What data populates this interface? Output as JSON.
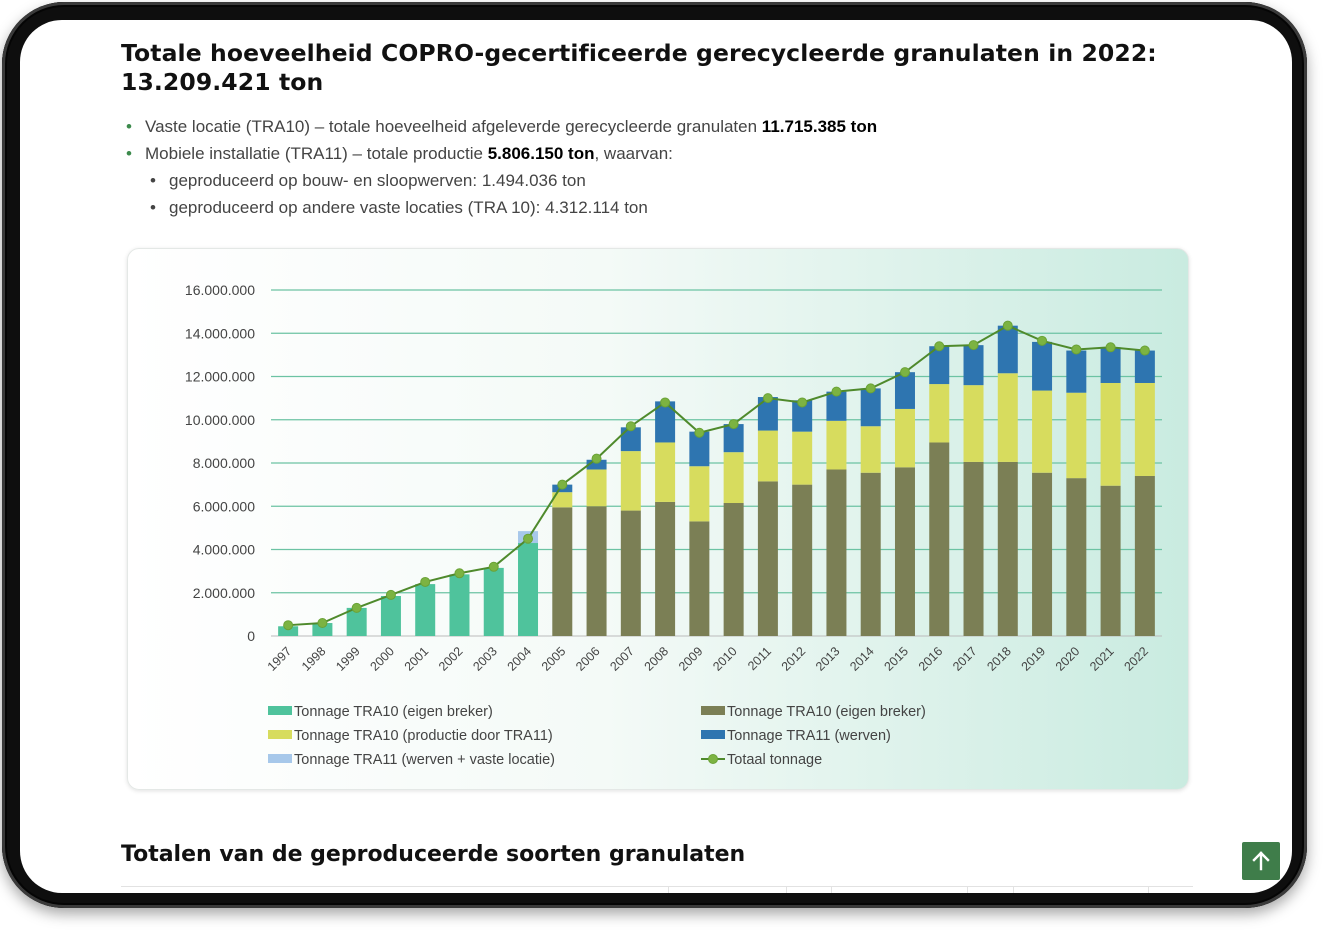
{
  "heading": "Totale hoeveelheid COPRO-gecertificeerde gerecycleerde granulaten in 2022: 13.209.421 ton",
  "bullets": {
    "b1_text": "Vaste locatie (TRA10) – totale hoeveelheid afgeleverde gerecycleerde granulaten ",
    "b1_bold": "11.715.385 ton",
    "b2_text": "Mobiele installatie (TRA11) – totale productie ",
    "b2_bold": "5.806.150 ton",
    "b2_tail": ", waarvan:",
    "sub1": "geproduceerd op bouw- en sloopwerven: 1.494.036 ton",
    "sub2": "geproduceerd op andere vaste locaties (TRA 10): 4.312.114 ton"
  },
  "section_title": "Totalen van de geproduceerde soorten granulaten",
  "scroll_top_icon": "arrow-up-icon",
  "chart_data": {
    "type": "bar",
    "stacked": true,
    "categories": [
      "1997",
      "1998",
      "1999",
      "2000",
      "2001",
      "2002",
      "2003",
      "2004",
      "2005",
      "2006",
      "2007",
      "2008",
      "2009",
      "2010",
      "2011",
      "2012",
      "2013",
      "2014",
      "2015",
      "2016",
      "2017",
      "2018",
      "2019",
      "2020",
      "2021",
      "2022"
    ],
    "ylim": [
      0,
      16000000
    ],
    "yticks": [
      "0",
      "2.000.000",
      "4.000.000",
      "6.000.000",
      "8.000.000",
      "10.000.000",
      "12.000.000",
      "14.000.000",
      "16.000.000"
    ],
    "grid": true,
    "legend_position": "bottom",
    "series": [
      {
        "name": "Tonnage TRA10 (eigen breker)",
        "color": "#4fc39c",
        "kind": "bar",
        "values": [
          450000,
          600000,
          1300000,
          1850000,
          2400000,
          2850000,
          3150000,
          4300000,
          0,
          0,
          0,
          0,
          0,
          0,
          0,
          0,
          0,
          0,
          0,
          0,
          0,
          0,
          0,
          0,
          0,
          0
        ]
      },
      {
        "name": "Tonnage TRA11 (werven + vaste locatie)",
        "color": "#a7c8ea",
        "kind": "bar",
        "values": [
          0,
          0,
          0,
          0,
          0,
          0,
          0,
          550000,
          0,
          0,
          0,
          0,
          0,
          0,
          0,
          0,
          0,
          0,
          0,
          0,
          0,
          0,
          0,
          0,
          0,
          0
        ]
      },
      {
        "name": "Tonnage TRA10 (eigen breker)",
        "color": "#7b7f55",
        "kind": "bar",
        "values": [
          0,
          0,
          0,
          0,
          0,
          0,
          0,
          0,
          5950000,
          6000000,
          5800000,
          6200000,
          5300000,
          6150000,
          7150000,
          7000000,
          7700000,
          7550000,
          7800000,
          8950000,
          8050000,
          8050000,
          7550000,
          7300000,
          6950000,
          7400000
        ]
      },
      {
        "name": "Tonnage TRA10 (productie door TRA11)",
        "color": "#d7dc5e",
        "kind": "bar",
        "values": [
          0,
          0,
          0,
          0,
          0,
          0,
          0,
          0,
          700000,
          1700000,
          2750000,
          2750000,
          2550000,
          2350000,
          2350000,
          2450000,
          2250000,
          2150000,
          2700000,
          2700000,
          3550000,
          4100000,
          3800000,
          3950000,
          4750000,
          4300000
        ]
      },
      {
        "name": "Tonnage TRA11 (werven)",
        "color": "#2e75b0",
        "kind": "bar",
        "values": [
          0,
          0,
          0,
          0,
          0,
          0,
          0,
          0,
          350000,
          450000,
          1100000,
          1900000,
          1600000,
          1300000,
          1550000,
          1450000,
          1350000,
          1750000,
          1700000,
          1750000,
          1850000,
          2200000,
          2250000,
          1950000,
          1650000,
          1500000
        ]
      },
      {
        "name": "Totaal tonnage",
        "color": "#4f8a2c",
        "kind": "line",
        "values": [
          500000,
          600000,
          1300000,
          1900000,
          2500000,
          2900000,
          3200000,
          4500000,
          7000000,
          8200000,
          9700000,
          10800000,
          9400000,
          9800000,
          11000000,
          10800000,
          11300000,
          11450000,
          12200000,
          13400000,
          13450000,
          14350000,
          13650000,
          13250000,
          13350000,
          13200000
        ]
      }
    ]
  }
}
